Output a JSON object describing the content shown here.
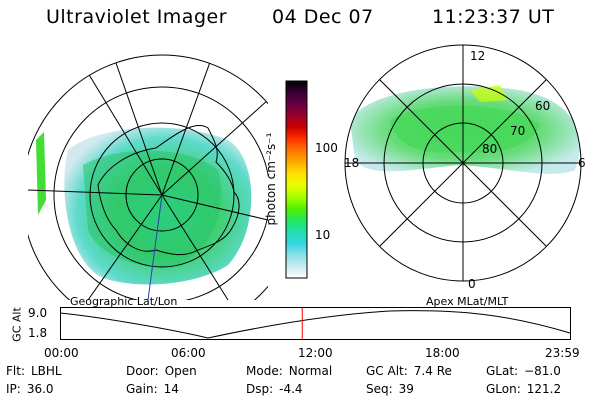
{
  "header": {
    "title": "Ultraviolet Imager",
    "date": "04 Dec 07",
    "time": "11:23:37 UT"
  },
  "colorbar": {
    "unit_label": "photon cm⁻²s⁻¹",
    "ticks": [
      "100",
      "10"
    ],
    "colors": [
      "#000000",
      "#3a0033",
      "#660044",
      "#99002b",
      "#cc0000",
      "#ff3300",
      "#ff7700",
      "#ffaa00",
      "#ffe000",
      "#e8ff00",
      "#a8ff00",
      "#55f000",
      "#22e85a",
      "#22e0b0",
      "#33d5e0",
      "#88e0e8",
      "#c8ecf0",
      "#ffffff"
    ]
  },
  "polar_plot": {
    "mlt_labels": {
      "top": "12",
      "left": "18",
      "right": "6",
      "bottom": "0"
    },
    "lat_labels": [
      "60",
      "70",
      "80"
    ]
  },
  "panel_labels": {
    "left": "Geographic Lat/Lon",
    "right": "Apex MLat/MLT"
  },
  "altitude_plot": {
    "ylabel": "GC Alt",
    "ymax_label": "9.0",
    "ymin_label": "1.8",
    "x_ticks": [
      "00:00",
      "06:00",
      "12:00",
      "18:00",
      "23:59"
    ],
    "marker_time_hours": 11.4,
    "marker_color": "#ff0000"
  },
  "info": {
    "row1": [
      {
        "key": "Flt:",
        "value": "LBHL"
      },
      {
        "key": "Door:",
        "value": "Open"
      },
      {
        "key": "Mode:",
        "value": "Normal"
      },
      {
        "key": "GC Alt:",
        "value": "7.4 Re"
      },
      {
        "key": "GLat:",
        "value": "−81.0"
      }
    ],
    "row2": [
      {
        "key": "IP:",
        "value": "36.0"
      },
      {
        "key": "Gain:",
        "value": "14"
      },
      {
        "key": "Dsp:",
        "value": "-4.4"
      },
      {
        "key": "Seq:",
        "value": "39"
      },
      {
        "key": "GLon:",
        "value": "121.2"
      }
    ]
  }
}
